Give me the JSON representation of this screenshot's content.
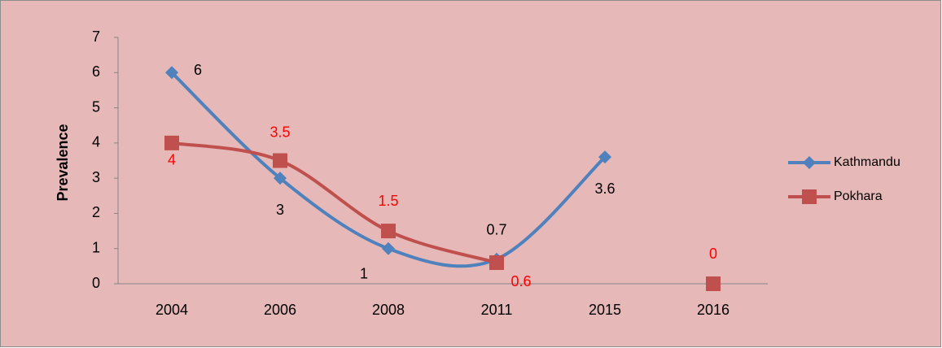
{
  "chart_data": {
    "type": "line",
    "y_label": "Prevalence",
    "categories": [
      "2004",
      "2006",
      "2008",
      "2011",
      "2015",
      "2016"
    ],
    "series": [
      {
        "name": "Kathmandu",
        "color": "#4f81bd",
        "label_color": "#000000",
        "marker": "diamond",
        "values": [
          6,
          3,
          1,
          0.7,
          3.6,
          null
        ]
      },
      {
        "name": "Pokhara",
        "color": "#c0504d",
        "label_color": "#ff0000",
        "marker": "square",
        "values": [
          4,
          3.5,
          1.5,
          0.6,
          null,
          0
        ]
      }
    ],
    "ylim": [
      0,
      7
    ],
    "yticks": [
      0,
      1,
      2,
      3,
      4,
      5,
      6,
      7
    ],
    "smooth": true,
    "legend": "right",
    "background": "#e6b9b8"
  }
}
